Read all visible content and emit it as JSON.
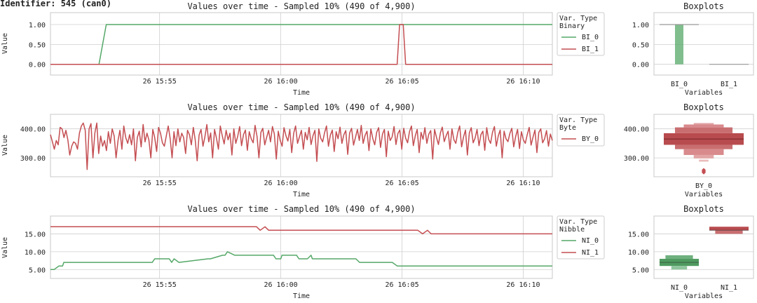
{
  "identifier": "Identifier: 545 (can0)",
  "colors": {
    "green": "#55a868",
    "red": "#c44e52",
    "grid": "#cfcfcf"
  },
  "chart_data": [
    {
      "type": "line",
      "title": "Values over time - Sampled 10% (490 of 4,900)",
      "xlabel": "Time",
      "ylabel": "Value",
      "xticks": [
        "26 15:55",
        "26 16:00",
        "26 16:05",
        "26 16:10"
      ],
      "xtick_minutes": [
        4.5,
        9.5,
        14.5,
        19.5
      ],
      "xlim_minutes": [
        0,
        20.7
      ],
      "ylim": [
        -0.27,
        1.3
      ],
      "yticks": [
        0,
        0.5,
        1
      ],
      "ytick_labels": [
        "0.00",
        "0.50",
        "1.00"
      ],
      "legend_title": "Var. Type",
      "legend_subtitle": "Binary",
      "series": [
        {
          "name": "BI_0",
          "color": "#55a868",
          "x": [
            0,
            2.0,
            2.3,
            20.7
          ],
          "y": [
            0,
            0,
            1,
            1
          ]
        },
        {
          "name": "BI_1",
          "color": "#c44e52",
          "x": [
            0,
            14.3,
            14.4,
            14.55,
            14.65,
            20.7
          ],
          "y": [
            0,
            0,
            1,
            1,
            0,
            0
          ]
        }
      ]
    },
    {
      "type": "line",
      "title": "Values over time - Sampled 10% (490 of 4,900)",
      "xlabel": "Time",
      "ylabel": "Value",
      "xticks": [
        "26 15:55",
        "26 16:00",
        "26 16:05",
        "26 16:10"
      ],
      "xtick_minutes": [
        4.5,
        9.5,
        14.5,
        19.5
      ],
      "xlim_minutes": [
        0,
        20.7
      ],
      "ylim": [
        235,
        450
      ],
      "yticks": [
        300,
        400
      ],
      "ytick_labels": [
        "300.00",
        "400.00"
      ],
      "legend_title": "Var. Type",
      "legend_subtitle": "Byte",
      "series": [
        {
          "name": "BY_0",
          "color": "#c44e52",
          "x_range": [
            0,
            20.7
          ],
          "y": [
            380,
            355,
            330,
            360,
            345,
            405,
            400,
            370,
            395,
            362,
            310,
            340,
            355,
            350,
            330,
            385,
            410,
            420,
            395,
            260,
            400,
            418,
            300,
            385,
            420,
            315,
            375,
            340,
            360,
            325,
            390,
            350,
            400,
            375,
            300,
            360,
            395,
            330,
            410,
            370,
            350,
            380,
            345,
            400,
            290,
            370,
            392,
            338,
            415,
            355,
            385,
            362,
            300,
            398,
            370,
            322,
            405,
            385,
            352,
            340,
            375,
            410,
            368,
            300,
            390,
            342,
            400,
            355,
            385,
            370,
            315,
            395,
            380,
            345,
            405,
            362,
            290,
            378,
            398,
            340,
            372,
            415,
            355,
            386,
            300,
            398,
            368,
            330,
            410,
            376,
            348,
            395,
            362,
            385,
            310,
            400,
            350,
            374,
            408,
            342,
            380,
            396,
            326,
            390,
            366,
            352,
            412,
            374,
            300,
            388,
            402,
            345,
            370,
            395,
            355,
            408,
            382,
            296,
            392,
            360,
            340,
            404,
            376,
            358,
            398,
            318,
            385,
            410,
            350,
            372,
            395,
            330,
            388,
            362,
            405,
            346,
            376,
            395,
            288,
            400,
            368,
            355,
            386,
            410,
            340,
            378,
            396,
            322,
            390,
            366,
            406,
            350,
            380,
            394,
            312,
            386,
            402,
            344,
            370,
            398,
            360,
            412,
            350,
            378,
            392,
            325,
            400,
            366,
            345,
            388,
            404,
            336,
            382,
            398,
            304,
            392,
            360,
            372,
            408,
            346,
            384,
            396,
            330,
            402,
            368,
            352,
            390,
            410,
            342,
            376,
            398,
            318,
            388,
            364,
            404,
            350,
            382,
            394,
            296,
            398,
            370,
            346,
            386,
            406,
            356,
            376,
            392,
            330,
            400,
            362,
            350,
            388,
            410,
            338,
            372,
            396,
            310,
            386,
            404,
            352,
            368,
            398,
            342,
            380,
            392,
            326,
            404,
            364,
            350,
            388,
            408,
            340,
            376,
            396,
            300,
            392,
            366,
            356,
            384,
            402,
            338,
            374,
            398,
            332,
            390,
            362,
            350,
            380,
            405,
            344,
            372,
            396,
            318,
            388,
            400,
            352,
            366,
            394,
            340,
            382,
            360
          ]
        }
      ]
    },
    {
      "type": "line",
      "title": "Values over time - Sampled 10% (490 of 4,900)",
      "xlabel": "Time",
      "ylabel": "Value",
      "xticks": [
        "26 15:55",
        "26 16:00",
        "26 16:05",
        "26 16:10"
      ],
      "xtick_minutes": [
        4.5,
        9.5,
        14.5,
        19.5
      ],
      "xlim_minutes": [
        0,
        20.7
      ],
      "ylim": [
        2.5,
        20
      ],
      "yticks": [
        5,
        10,
        15
      ],
      "ytick_labels": [
        "5.00",
        "10.00",
        "15.00"
      ],
      "legend_title": "Var. Type",
      "legend_subtitle": "Nibble",
      "series": [
        {
          "name": "NI_0",
          "color": "#55a868",
          "x": [
            0,
            0.15,
            0.35,
            0.5,
            0.55,
            4.2,
            4.3,
            4.9,
            5.0,
            5.1,
            5.3,
            6.5,
            6.6,
            7.1,
            7.2,
            7.3,
            7.6,
            9.2,
            9.3,
            9.5,
            9.55,
            10.15,
            10.25,
            10.6,
            10.75,
            10.8,
            10.95,
            12.6,
            12.75,
            14.1,
            14.3,
            20.7
          ],
          "y": [
            5,
            5,
            6,
            6,
            7,
            7,
            8,
            8,
            7,
            8,
            7,
            8,
            8,
            9,
            9,
            10,
            9,
            9,
            8,
            8,
            9,
            9,
            8,
            8,
            9,
            8,
            8,
            8,
            7,
            7,
            6,
            6
          ]
        },
        {
          "name": "NI_1",
          "color": "#c44e52",
          "x": [
            0,
            0.2,
            0.3,
            8.5,
            8.65,
            8.85,
            9.0,
            15.15,
            15.35,
            15.55,
            15.7,
            20.7
          ],
          "y": [
            17,
            17,
            17,
            17,
            16,
            17,
            16,
            16,
            15,
            16,
            15,
            15
          ]
        }
      ]
    },
    {
      "type": "boxplot",
      "title": "Boxplots",
      "xlabel": "Variables",
      "ylim": [
        -0.27,
        1.3
      ],
      "yticks": [
        0,
        0.5,
        1
      ],
      "ytick_labels": [
        "0.00",
        "0.50",
        "1.00"
      ],
      "categories": [
        "BI_0",
        "BI_1"
      ],
      "boxes": [
        {
          "name": "BI_0",
          "color": "#55a868",
          "low": 0,
          "high": 1,
          "median": 1
        },
        {
          "name": "BI_1",
          "color": "#c44e52",
          "low": 0,
          "high": 0,
          "median": 0
        }
      ]
    },
    {
      "type": "boxplot",
      "title": "Boxplots",
      "xlabel": "Variables",
      "ylim": [
        235,
        450
      ],
      "yticks": [
        300,
        400
      ],
      "ytick_labels": [
        "300.00",
        "400.00"
      ],
      "categories": [
        "BY_0"
      ],
      "boxen": [
        {
          "low": 345,
          "high": 385,
          "w": 1.0,
          "color": "#b84b4e"
        },
        {
          "low": 330,
          "high": 345,
          "w": 0.72,
          "color": "#c96e70"
        },
        {
          "low": 385,
          "high": 405,
          "w": 0.72,
          "color": "#c96e70"
        },
        {
          "low": 310,
          "high": 330,
          "w": 0.5,
          "color": "#d88a8c"
        },
        {
          "low": 405,
          "high": 415,
          "w": 0.5,
          "color": "#d88a8c"
        },
        {
          "low": 298,
          "high": 310,
          "w": 0.25,
          "color": "#e2a5a6"
        },
        {
          "low": 415,
          "high": 420,
          "w": 0.25,
          "color": "#e2a5a6"
        },
        {
          "low": 287,
          "high": 294,
          "w": 0.12,
          "color": "#ebbdbe"
        }
      ],
      "median": 365,
      "outliers": [
        250,
        254,
        258
      ]
    },
    {
      "type": "boxplot",
      "title": "Boxplots",
      "xlabel": "Variables",
      "ylim": [
        2.5,
        20
      ],
      "yticks": [
        5,
        10,
        15
      ],
      "ytick_labels": [
        "5.00",
        "10.00",
        "15.00"
      ],
      "categories": [
        "NI_0",
        "NI_1"
      ],
      "boxen_groups": [
        {
          "name": "NI_0",
          "boxes": [
            {
              "low": 6,
              "high": 8,
              "w": 1.0,
              "color": "#4f9a60"
            },
            {
              "low": 8,
              "high": 9,
              "w": 0.7,
              "color": "#6fb07f"
            },
            {
              "low": 5,
              "high": 6,
              "w": 0.4,
              "color": "#8fc49c"
            }
          ],
          "median": 7
        },
        {
          "name": "NI_1",
          "boxes": [
            {
              "low": 16,
              "high": 17,
              "w": 1.0,
              "color": "#b84b4e"
            },
            {
              "low": 15,
              "high": 16,
              "w": 0.7,
              "color": "#c96e70"
            }
          ],
          "median": 16
        }
      ]
    }
  ]
}
